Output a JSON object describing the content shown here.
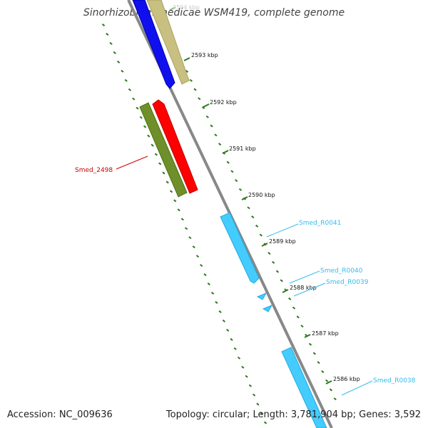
{
  "title": "Sinorhizobium medicae WSM419, complete genome",
  "footer": {
    "accession": "Accession: NC_009636",
    "summary": "Topology: circular; Length: 3,781,904 bp; Genes: 3,592"
  },
  "scale": {
    "ticks": [
      {
        "label": "2594 kbp",
        "faded": true
      },
      {
        "label": "2593 kbp"
      },
      {
        "label": "2592 kbp"
      },
      {
        "label": "2591 kbp"
      },
      {
        "label": "2590 kbp"
      },
      {
        "label": "2589 kbp"
      },
      {
        "label": "2588 kbp"
      },
      {
        "label": "2587 kbp"
      },
      {
        "label": "2586 kbp"
      }
    ]
  },
  "genes": [
    {
      "label": "Smed_2498",
      "color": "#cc0000",
      "fill": "#ff0000"
    },
    {
      "label": "Smed_R0041",
      "color": "#33bbee",
      "fill": "#44ccff"
    },
    {
      "label": "Smed_R0040",
      "color": "#33bbee",
      "fill": "#44ccff"
    },
    {
      "label": "Smed_R0039",
      "color": "#33bbee",
      "fill": "#44ccff"
    },
    {
      "label": "Smed_R0038",
      "color": "#33bbee",
      "fill": "#44ccff"
    }
  ],
  "colors": {
    "backbone": "#888888",
    "dots": "#2a7a1a",
    "blue_gene": "#1010ee",
    "khaki_gene": "#c8c080",
    "olive_gene": "#6f8f2a",
    "red_gene": "#ff0000",
    "cyan_gene": "#44ccff"
  }
}
